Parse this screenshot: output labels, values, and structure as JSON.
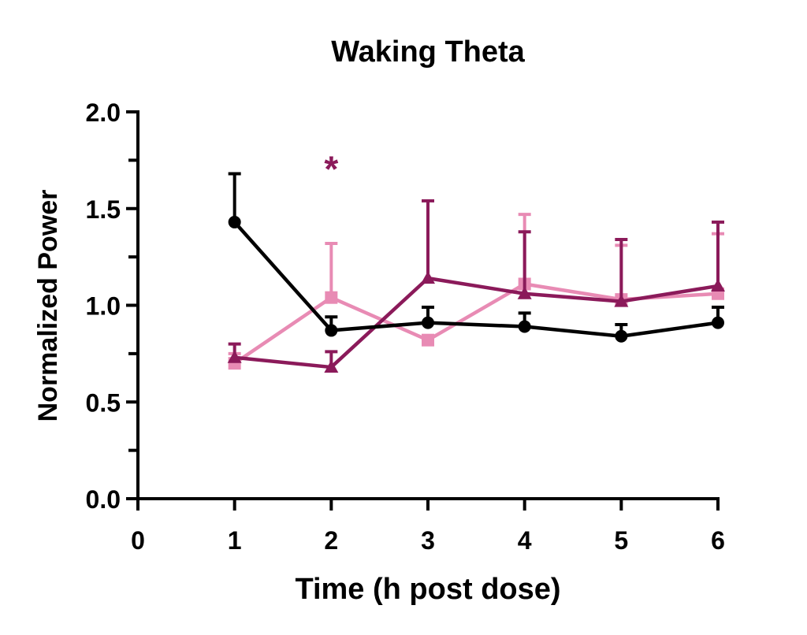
{
  "chart_data": {
    "type": "line",
    "title": "Waking Theta",
    "xlabel": "Time (h post dose)",
    "ylabel": "Normalized Power",
    "xlim": [
      0,
      6
    ],
    "ylim": [
      0,
      2.0
    ],
    "x_ticks": [
      "0",
      "1",
      "2",
      "3",
      "4",
      "5",
      "6"
    ],
    "x_tick_values": [
      0,
      1,
      2,
      3,
      4,
      5,
      6
    ],
    "y_ticks": [
      "0.0",
      "0.5",
      "1.0",
      "1.5",
      "2.0"
    ],
    "y_tick_values": [
      0,
      0.5,
      1.0,
      1.5,
      2.0
    ],
    "y_minor_tick_values": [
      0.25,
      0.75,
      1.25,
      1.75
    ],
    "grid": false,
    "legend": "none",
    "x": [
      1,
      2,
      3,
      4,
      5,
      6
    ],
    "series": [
      {
        "name": "black-circles",
        "color": "#000000",
        "marker": "circle",
        "values": [
          1.43,
          0.87,
          0.91,
          0.89,
          0.84,
          0.91
        ],
        "error_upper": [
          1.68,
          0.94,
          0.99,
          0.96,
          0.9,
          0.99
        ]
      },
      {
        "name": "dark-magenta-triangles",
        "color": "#8b1a5a",
        "marker": "triangle",
        "values": [
          0.73,
          0.68,
          1.14,
          1.06,
          1.02,
          1.1
        ],
        "error_upper": [
          0.8,
          0.76,
          1.54,
          1.38,
          1.34,
          1.43
        ]
      },
      {
        "name": "pink-squares",
        "color": "#e88bb4",
        "marker": "square",
        "values": [
          0.7,
          1.04,
          0.82,
          1.11,
          1.03,
          1.06
        ],
        "error_upper": [
          0.75,
          1.32,
          0.82,
          1.47,
          1.31,
          1.37
        ]
      }
    ],
    "annotations": [
      {
        "text": "*",
        "x": 2,
        "y": 1.73,
        "color": "#8b1a5a"
      }
    ]
  }
}
